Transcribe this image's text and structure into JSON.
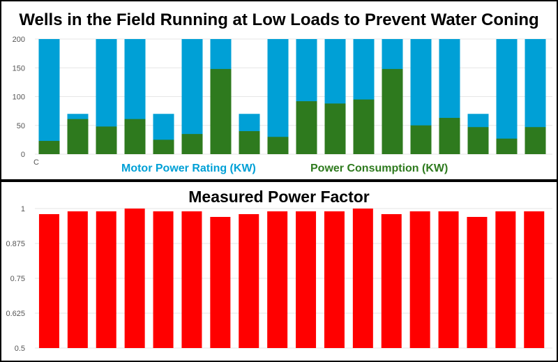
{
  "chart_data": [
    {
      "type": "bar",
      "title": "Wells in the Field Running at Low Loads to Prevent Water Coning",
      "stacking": "overlay",
      "ylim": [
        0,
        200
      ],
      "yticks": [
        "0",
        "50",
        "100",
        "150",
        "200"
      ],
      "x_tick_stub": "C",
      "grid": true,
      "legend_position": "bottom",
      "colors": {
        "rating": "#00A0D6",
        "consumption": "#2E7A1E"
      },
      "series": [
        {
          "name": "Motor Power Rating (KW)",
          "values": [
            200,
            70,
            200,
            200,
            70,
            200,
            200,
            70,
            200,
            200,
            200,
            200,
            200,
            200,
            200,
            70,
            200,
            200
          ]
        },
        {
          "name": "Power Consumption (KW)",
          "values": [
            23,
            61,
            48,
            61,
            25,
            35,
            148,
            40,
            30,
            92,
            88,
            95,
            148,
            50,
            63,
            47,
            27,
            47
          ]
        }
      ]
    },
    {
      "type": "bar",
      "title": "Measured Power Factor",
      "ylim": [
        0.5,
        1
      ],
      "yticks": [
        "0.5",
        "0.625",
        "0.75",
        "0.875",
        "1"
      ],
      "grid": true,
      "colors": {
        "bar": "#FF0000"
      },
      "series": [
        {
          "values": [
            0.98,
            0.99,
            0.99,
            1.0,
            0.99,
            0.99,
            0.97,
            0.98,
            0.99,
            0.99,
            0.99,
            1.0,
            0.98,
            0.99,
            0.99,
            0.97,
            0.99,
            0.99
          ]
        }
      ]
    }
  ]
}
